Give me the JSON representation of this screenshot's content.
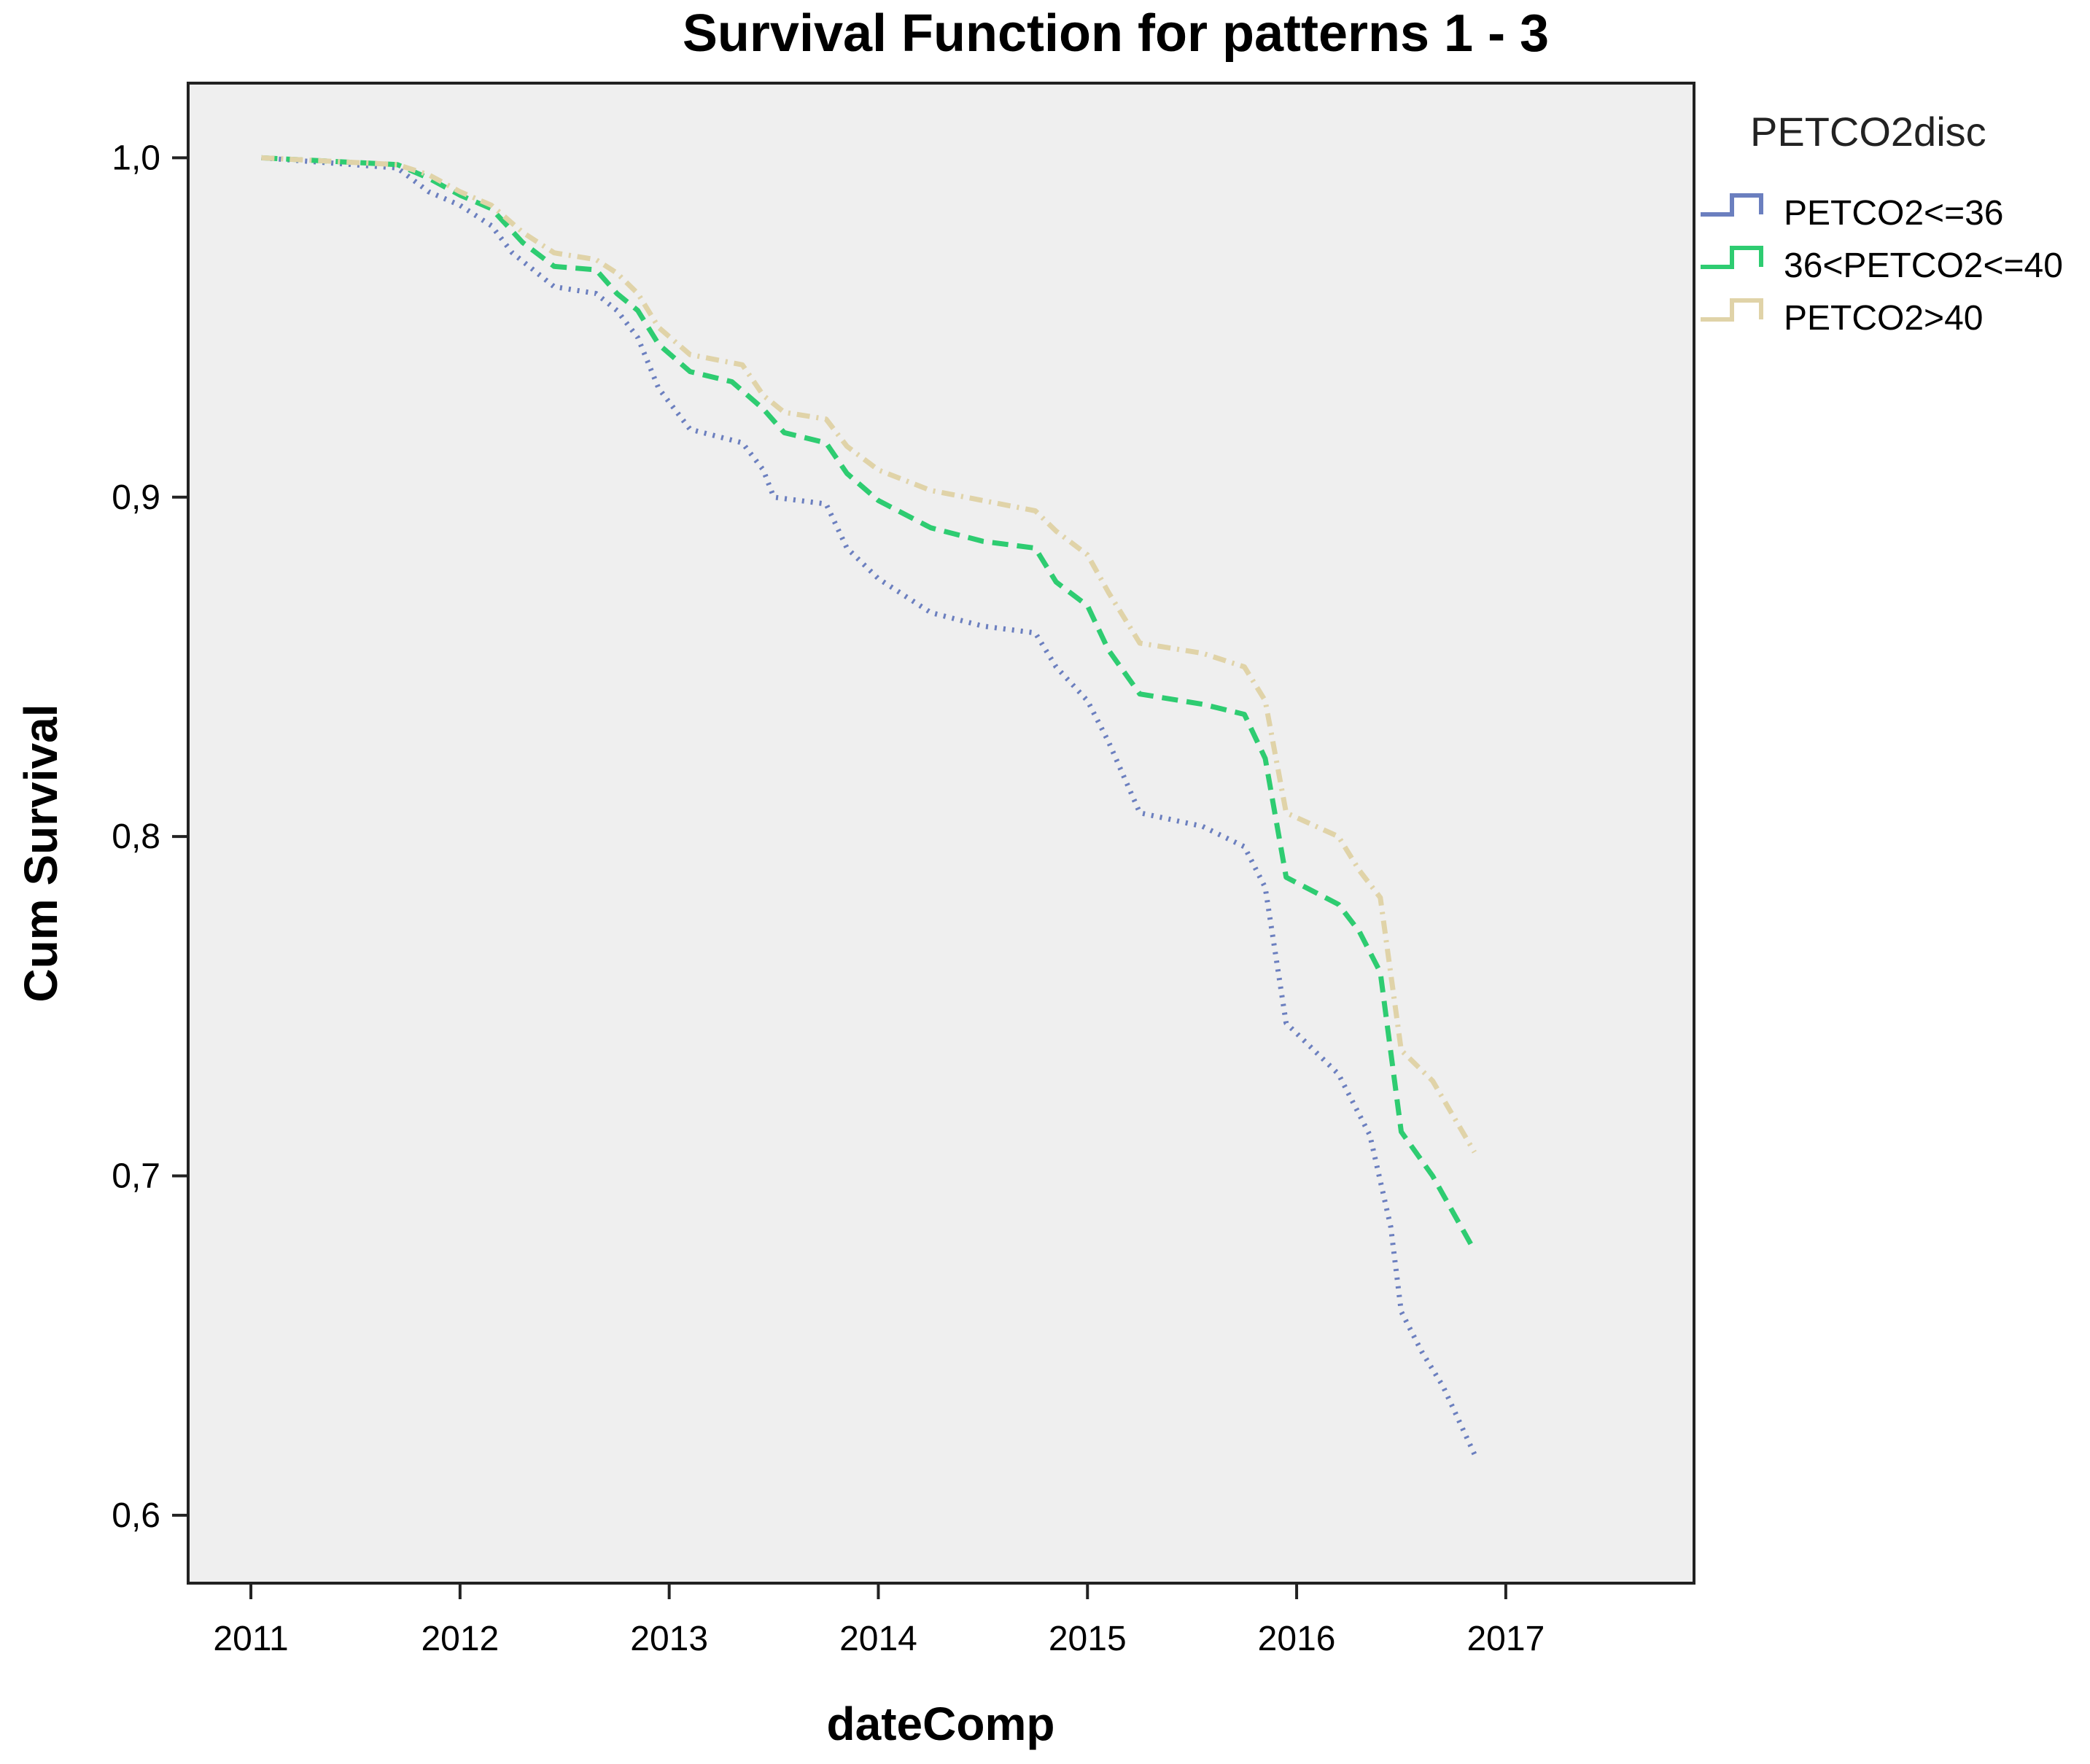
{
  "chart_data": {
    "type": "line",
    "title": "Survival Function for patterns 1 - 3",
    "xlabel": "dateComp",
    "ylabel": "Cum Survival",
    "xlim": [
      2010.7,
      2017.9
    ],
    "ylim": [
      0.58,
      1.022
    ],
    "x_ticks": [
      2011,
      2012,
      2013,
      2014,
      2015,
      2016,
      2017
    ],
    "x_tick_labels": [
      "2011",
      "2012",
      "2013",
      "2014",
      "2015",
      "2016",
      "2017"
    ],
    "y_ticks": [
      0.6,
      0.7,
      0.8,
      0.9,
      1.0
    ],
    "y_tick_labels": [
      "0,6",
      "0,7",
      "0,8",
      "0,9",
      "1,0"
    ],
    "grid": false,
    "plot_background": "#efefef",
    "legend": {
      "title": "PETCO2disc",
      "position": "right"
    },
    "series": [
      {
        "name": "PETCO2<=36",
        "color": "#6b7fbf",
        "dash": "dotted",
        "points": [
          [
            2011.05,
            1.0
          ],
          [
            2011.7,
            0.997
          ],
          [
            2011.85,
            0.99
          ],
          [
            2012.0,
            0.986
          ],
          [
            2012.15,
            0.98
          ],
          [
            2012.25,
            0.972
          ],
          [
            2012.45,
            0.962
          ],
          [
            2012.65,
            0.96
          ],
          [
            2012.75,
            0.955
          ],
          [
            2012.85,
            0.947
          ],
          [
            2012.95,
            0.932
          ],
          [
            2013.1,
            0.92
          ],
          [
            2013.35,
            0.916
          ],
          [
            2013.45,
            0.908
          ],
          [
            2013.5,
            0.9
          ],
          [
            2013.75,
            0.898
          ],
          [
            2013.85,
            0.885
          ],
          [
            2014.0,
            0.876
          ],
          [
            2014.25,
            0.866
          ],
          [
            2014.5,
            0.862
          ],
          [
            2014.75,
            0.86
          ],
          [
            2014.85,
            0.85
          ],
          [
            2015.0,
            0.84
          ],
          [
            2015.1,
            0.828
          ],
          [
            2015.25,
            0.807
          ],
          [
            2015.55,
            0.803
          ],
          [
            2015.75,
            0.797
          ],
          [
            2015.85,
            0.785
          ],
          [
            2015.95,
            0.745
          ],
          [
            2016.2,
            0.73
          ],
          [
            2016.35,
            0.712
          ],
          [
            2016.45,
            0.685
          ],
          [
            2016.5,
            0.66
          ],
          [
            2016.6,
            0.648
          ],
          [
            2016.7,
            0.638
          ],
          [
            2016.85,
            0.618
          ]
        ]
      },
      {
        "name": "36<PETCO2<=40",
        "color": "#2ecc71",
        "dash": "dashed",
        "points": [
          [
            2011.05,
            1.0
          ],
          [
            2011.7,
            0.998
          ],
          [
            2011.85,
            0.994
          ],
          [
            2012.0,
            0.989
          ],
          [
            2012.15,
            0.985
          ],
          [
            2012.3,
            0.975
          ],
          [
            2012.45,
            0.968
          ],
          [
            2012.65,
            0.967
          ],
          [
            2012.75,
            0.96
          ],
          [
            2012.85,
            0.955
          ],
          [
            2012.95,
            0.945
          ],
          [
            2013.1,
            0.937
          ],
          [
            2013.3,
            0.934
          ],
          [
            2013.45,
            0.926
          ],
          [
            2013.55,
            0.919
          ],
          [
            2013.75,
            0.916
          ],
          [
            2013.85,
            0.907
          ],
          [
            2014.0,
            0.899
          ],
          [
            2014.25,
            0.891
          ],
          [
            2014.5,
            0.887
          ],
          [
            2014.75,
            0.885
          ],
          [
            2014.85,
            0.875
          ],
          [
            2015.0,
            0.868
          ],
          [
            2015.1,
            0.855
          ],
          [
            2015.25,
            0.842
          ],
          [
            2015.55,
            0.839
          ],
          [
            2015.75,
            0.836
          ],
          [
            2015.85,
            0.823
          ],
          [
            2015.95,
            0.788
          ],
          [
            2016.2,
            0.78
          ],
          [
            2016.3,
            0.772
          ],
          [
            2016.4,
            0.76
          ],
          [
            2016.5,
            0.713
          ],
          [
            2016.65,
            0.7
          ],
          [
            2016.85,
            0.678
          ]
        ]
      },
      {
        "name": "PETCO2>40",
        "color": "#e0d3a8",
        "dash": "dashdot",
        "points": [
          [
            2011.05,
            1.0
          ],
          [
            2011.7,
            0.998
          ],
          [
            2011.85,
            0.995
          ],
          [
            2012.0,
            0.99
          ],
          [
            2012.15,
            0.986
          ],
          [
            2012.3,
            0.978
          ],
          [
            2012.45,
            0.972
          ],
          [
            2012.65,
            0.97
          ],
          [
            2012.75,
            0.966
          ],
          [
            2012.85,
            0.96
          ],
          [
            2012.95,
            0.95
          ],
          [
            2013.1,
            0.942
          ],
          [
            2013.35,
            0.939
          ],
          [
            2013.45,
            0.93
          ],
          [
            2013.55,
            0.925
          ],
          [
            2013.75,
            0.923
          ],
          [
            2013.85,
            0.915
          ],
          [
            2014.0,
            0.908
          ],
          [
            2014.25,
            0.902
          ],
          [
            2014.5,
            0.899
          ],
          [
            2014.75,
            0.896
          ],
          [
            2014.85,
            0.89
          ],
          [
            2015.0,
            0.883
          ],
          [
            2015.1,
            0.872
          ],
          [
            2015.25,
            0.857
          ],
          [
            2015.55,
            0.854
          ],
          [
            2015.75,
            0.85
          ],
          [
            2015.85,
            0.84
          ],
          [
            2015.95,
            0.807
          ],
          [
            2016.2,
            0.8
          ],
          [
            2016.3,
            0.79
          ],
          [
            2016.4,
            0.782
          ],
          [
            2016.5,
            0.737
          ],
          [
            2016.65,
            0.728
          ],
          [
            2016.85,
            0.707
          ]
        ]
      }
    ]
  }
}
